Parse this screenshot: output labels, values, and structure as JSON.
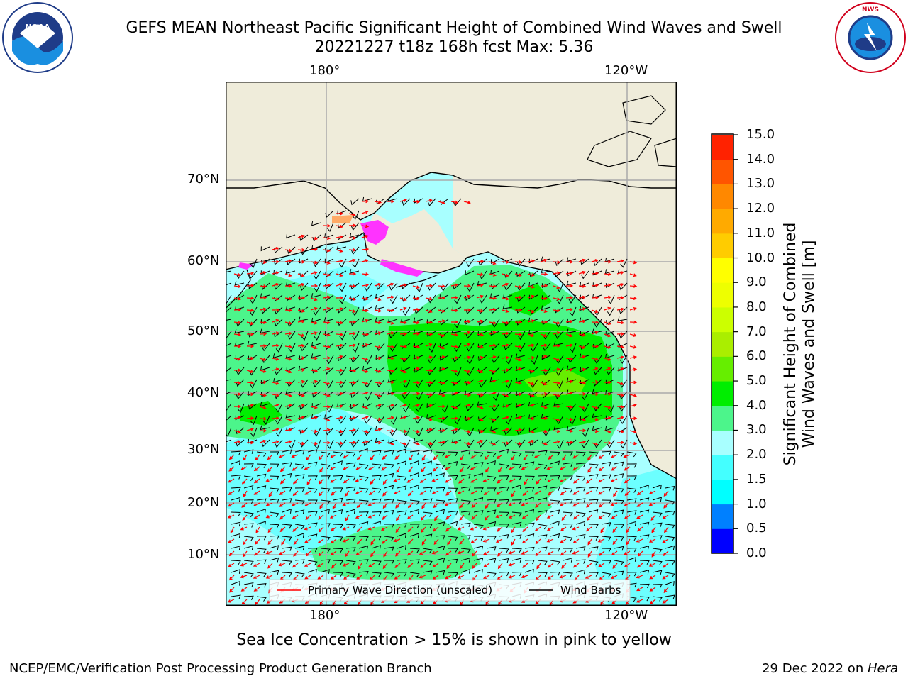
{
  "title": {
    "line1": "GEFS MEAN Northeast Pacific Significant Height of Combined Wind Waves and Swell",
    "line2": "20221227 t18z 168h fcst   Max: 5.36"
  },
  "logos": {
    "left": {
      "name": "noaa-logo",
      "text": "NOAA",
      "ring_text_top": "NATIONAL OCEANIC AND ATMOSPHERIC ADMINISTRATION",
      "ring_text_bottom": "U.S. DEPARTMENT OF COMMERCE"
    },
    "right": {
      "name": "nws-logo",
      "ring_text_top": "NATIONAL WEATHER SERVICE"
    }
  },
  "map": {
    "lon_ticks_top": [
      "180°",
      "120°W"
    ],
    "lon_ticks_bottom": [
      "180°",
      "120°W"
    ],
    "lat_ticks": [
      "70°N",
      "60°N",
      "50°N",
      "40°N",
      "30°N",
      "20°N",
      "10°N"
    ],
    "colors": {
      "land": "#efecda",
      "ocean_base": "#a8ffff",
      "wave_2_3": "#a8ffff",
      "wave_3_4": "#4cf58b",
      "wave_4_5": "#00ee00",
      "wave_5_6": "#66ee00",
      "wave_15_2": "#44ffff",
      "ice": "#ff33ff",
      "arrow": "#ff0000",
      "barb": "#000000",
      "grid": "#aaaaaa"
    }
  },
  "legend": {
    "wave_label": "Primary Wave Direction (unscaled)",
    "barb_label": "Wind Barbs"
  },
  "colorbar": {
    "label": "Significant Height of Combined\nWind Waves and Swell [m]",
    "label_line1": "Significant Height of Combined",
    "label_line2": "Wind Waves and Swell [m]",
    "ticks": [
      "15.0",
      "14.0",
      "13.0",
      "12.0",
      "11.0",
      "10.0",
      "9.0",
      "8.0",
      "7.0",
      "6.0",
      "5.0",
      "4.0",
      "3.0",
      "2.0",
      "1.5",
      "1.0",
      "0.5",
      "0.0"
    ],
    "colors_bottom_to_top": [
      "#0000ff",
      "#0080ff",
      "#00ffff",
      "#44ffff",
      "#a8ffff",
      "#4cf58b",
      "#00ee00",
      "#66ee00",
      "#aaee00",
      "#ccff00",
      "#eeff00",
      "#ffff00",
      "#ffcc00",
      "#ffaa00",
      "#ff8800",
      "#ff5500",
      "#ff2200"
    ]
  },
  "ice_note": "Sea Ice Concentration > 15% is shown in pink to yellow",
  "footer": {
    "left": "NCEP/EMC/Verification Post Processing Product Generation Branch",
    "right_date": "29 Dec 2022 on ",
    "right_host": "Hera"
  }
}
